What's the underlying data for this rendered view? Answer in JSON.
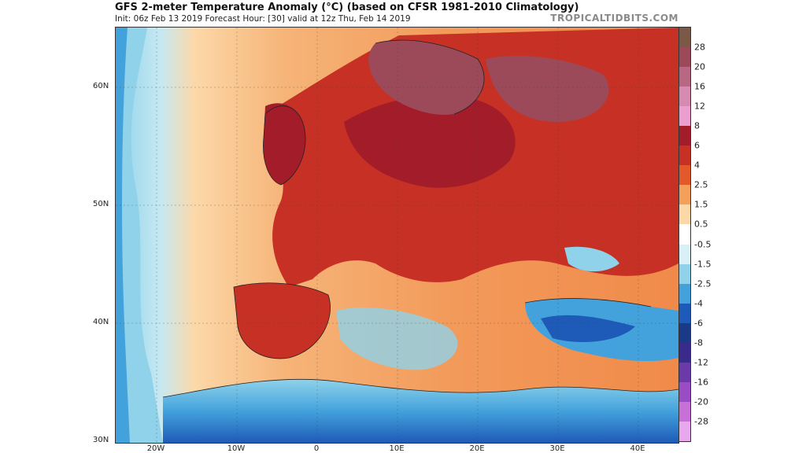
{
  "header": {
    "title": "GFS 2-meter Temperature Anomaly (°C) (based on CFSR 1981-2010 Climatology)",
    "subtitle": "Init: 06z Feb 13 2019   Forecast Hour: [30]   valid at 12z Thu, Feb 14 2019",
    "credit": "TROPICALTIDBITS.COM"
  },
  "map": {
    "region": "Europe",
    "lat_labels": [
      "60N",
      "50N",
      "40N",
      "30N"
    ],
    "lon_labels": [
      "20W",
      "10W",
      "0",
      "10E",
      "20E",
      "30E",
      "40E"
    ]
  },
  "colorbar": {
    "labels": [
      "28",
      "20",
      "16",
      "12",
      "8",
      "6",
      "4",
      "2.5",
      "1.5",
      "0.5",
      "-0.5",
      "-1.5",
      "-2.5",
      "-4",
      "-6",
      "-8",
      "-12",
      "-16",
      "-20",
      "-28"
    ],
    "colors": [
      "#7a5a46",
      "#9c4a5a",
      "#b96884",
      "#d88bb0",
      "#ec9ed0",
      "#a21c2a",
      "#c73024",
      "#e35a2a",
      "#f4a05a",
      "#fcd8a8",
      "#ffffff",
      "#d8f0f6",
      "#8fd2ea",
      "#43a2dc",
      "#1e5ab8",
      "#1a3a88",
      "#3a2a8c",
      "#6b3aa8",
      "#9a4cc4",
      "#c770d8",
      "#e8a8ee"
    ]
  }
}
